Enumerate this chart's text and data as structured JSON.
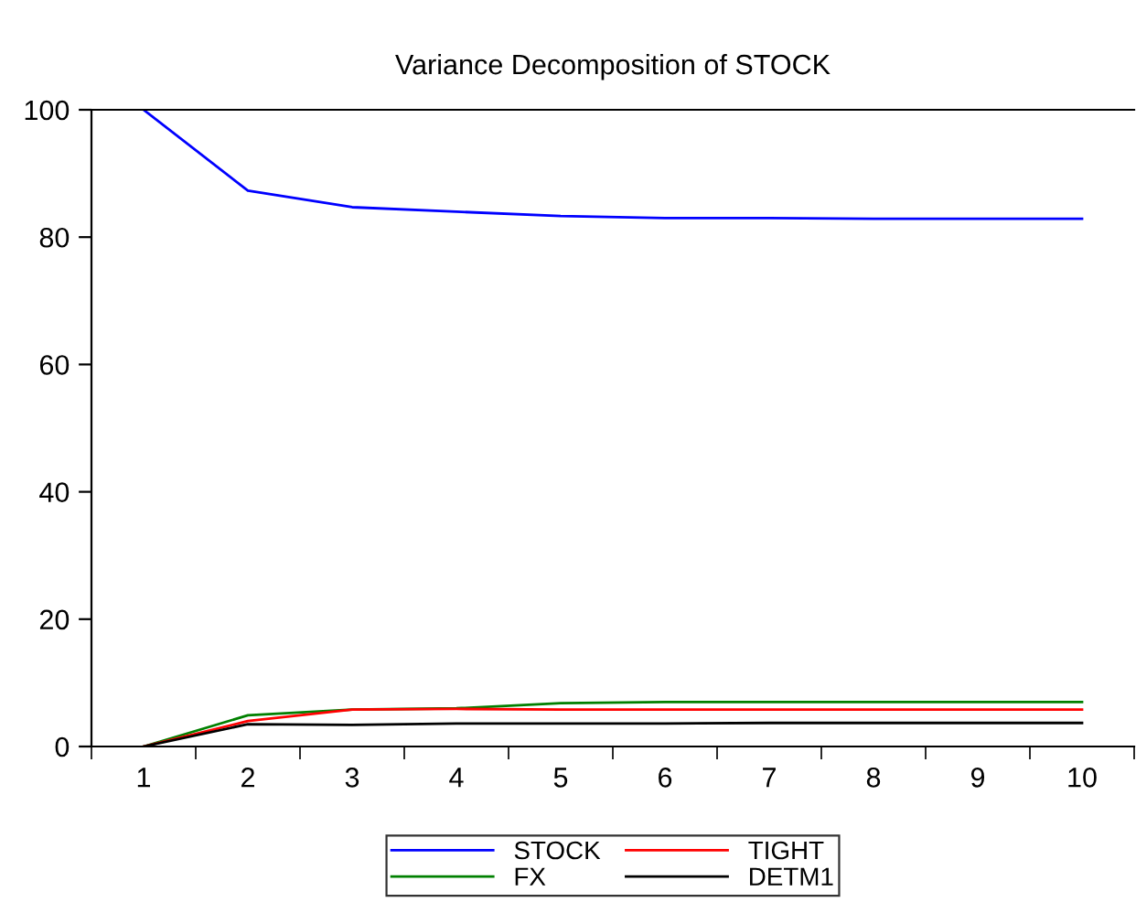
{
  "chart_data": {
    "type": "line",
    "title": "Variance Decomposition of STOCK",
    "categories": [
      "1",
      "2",
      "3",
      "4",
      "5",
      "6",
      "7",
      "8",
      "9",
      "10"
    ],
    "series": [
      {
        "name": "STOCK",
        "color": "#0000ff",
        "values": [
          100,
          87.3,
          84.7,
          84.0,
          83.3,
          83.0,
          83.0,
          82.9,
          82.9,
          82.9
        ]
      },
      {
        "name": "FX",
        "color": "#008000",
        "values": [
          0,
          4.9,
          5.8,
          6.0,
          6.8,
          7.0,
          7.0,
          7.0,
          7.0,
          7.0
        ]
      },
      {
        "name": "TIGHT",
        "color": "#ff0000",
        "values": [
          0,
          4.0,
          5.8,
          5.9,
          5.8,
          5.8,
          5.8,
          5.8,
          5.8,
          5.8
        ]
      },
      {
        "name": "DETM1",
        "color": "#000000",
        "values": [
          0,
          3.5,
          3.4,
          3.6,
          3.6,
          3.6,
          3.7,
          3.7,
          3.7,
          3.7
        ]
      }
    ],
    "ylim": [
      0,
      100
    ],
    "yticks": [
      0,
      20,
      40,
      60,
      80,
      100
    ],
    "grid": false,
    "legend": "bottom",
    "marker": "none",
    "line_style": "solid"
  }
}
